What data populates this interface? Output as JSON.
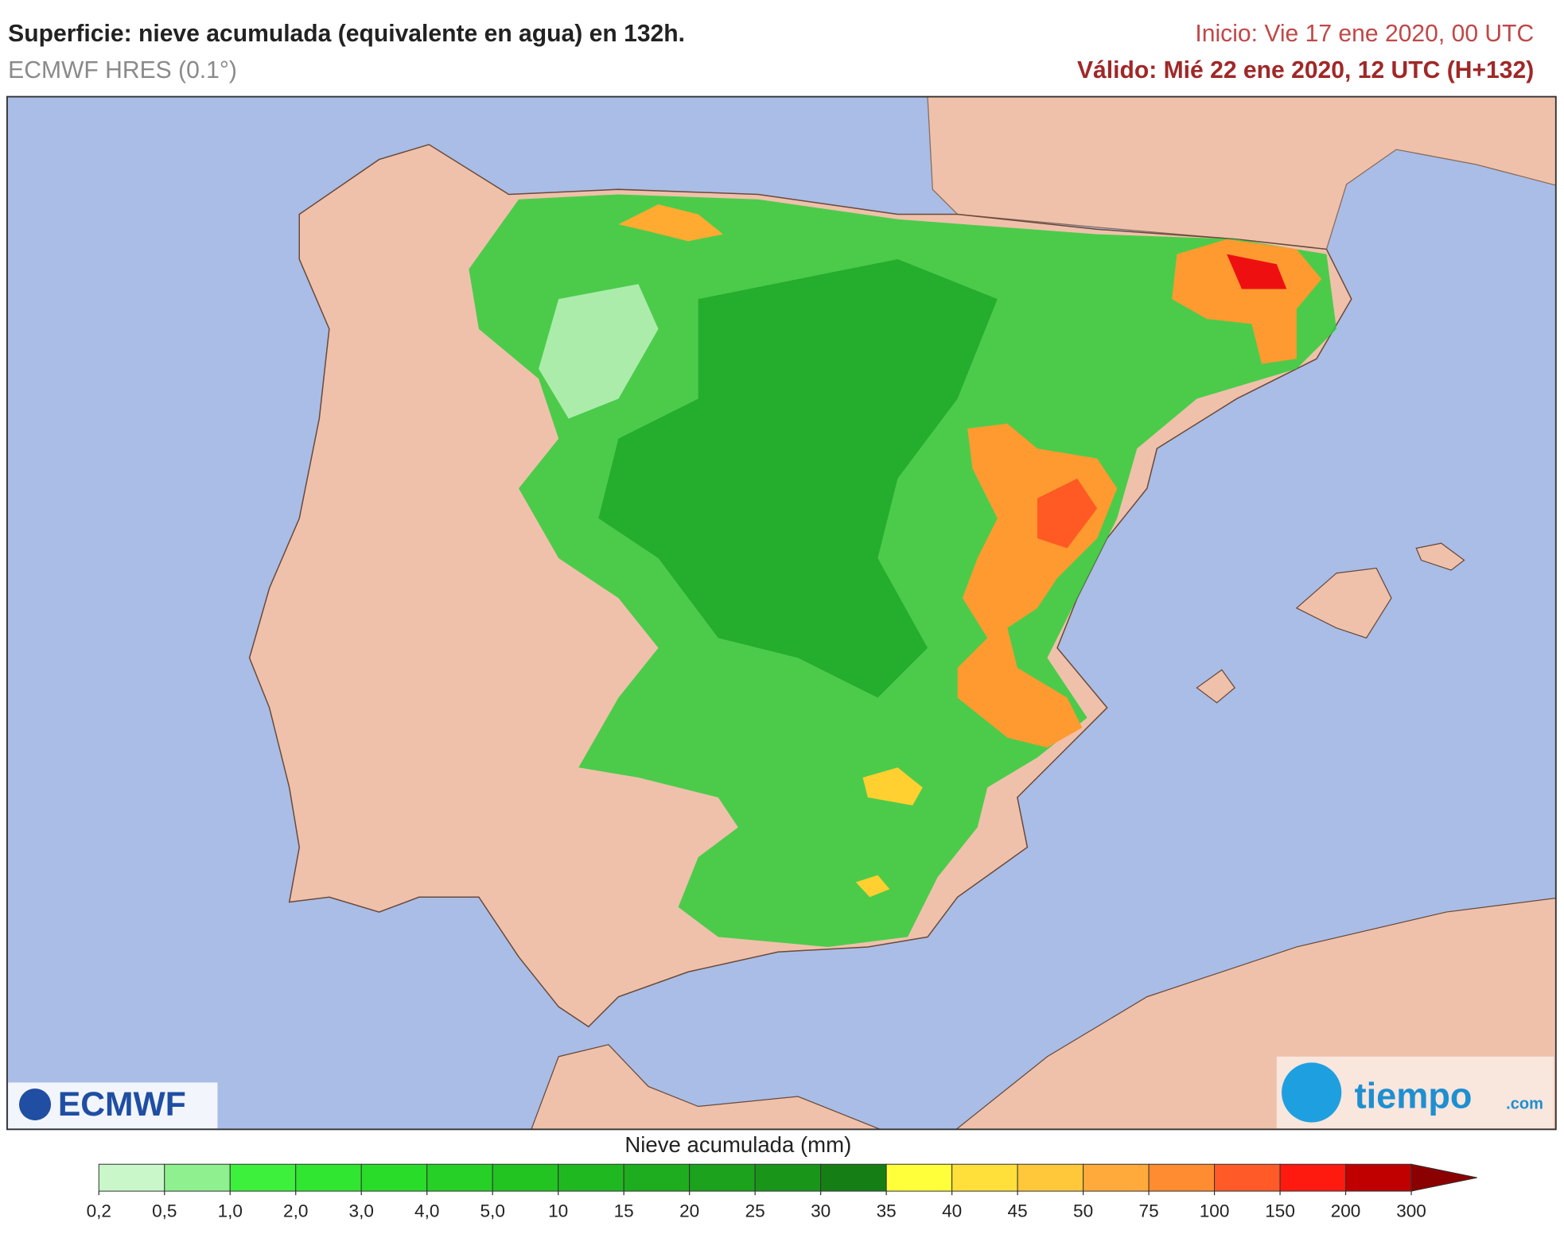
{
  "header": {
    "title": "Superficie: nieve acumulada (equivalente en agua) en 132h.",
    "model": "ECMWF HRES (0.1°)",
    "init": "Inicio: Vie 17 ene 2020, 00 UTC",
    "valid": "Válido: Mié 22 ene 2020, 12 UTC (H+132)"
  },
  "legend": {
    "title": "Nieve acumulada (mm)",
    "ticks": [
      {
        "value": 0.2,
        "label": "0,2"
      },
      {
        "value": 0.5,
        "label": "0,5"
      },
      {
        "value": 1,
        "label": "1,0"
      },
      {
        "value": 2,
        "label": "2,0"
      },
      {
        "value": 3,
        "label": "3,0"
      },
      {
        "value": 4,
        "label": "4,0"
      },
      {
        "value": 5,
        "label": "5,0"
      },
      10,
      15,
      20,
      25,
      30,
      35,
      40,
      45,
      50,
      75,
      100,
      150,
      200,
      300
    ],
    "colors": [
      "#c9f7c9",
      "#8ef08e",
      "#3cf03c",
      "#30e630",
      "#2adc2a",
      "#26d026",
      "#22c422",
      "#20b820",
      "#1ead1e",
      "#1ca21c",
      "#199619",
      "#157f15",
      "#ffff3a",
      "#ffe03a",
      "#ffc83a",
      "#ffaa3a",
      "#ff8c30",
      "#ff5a28",
      "#ff1a10",
      "#c00000"
    ],
    "over_color": "#8b0000"
  },
  "logos": {
    "ecmwf": "ECMWF",
    "tiempo": "tiempo",
    "tiempo_suffix": ".com"
  }
}
